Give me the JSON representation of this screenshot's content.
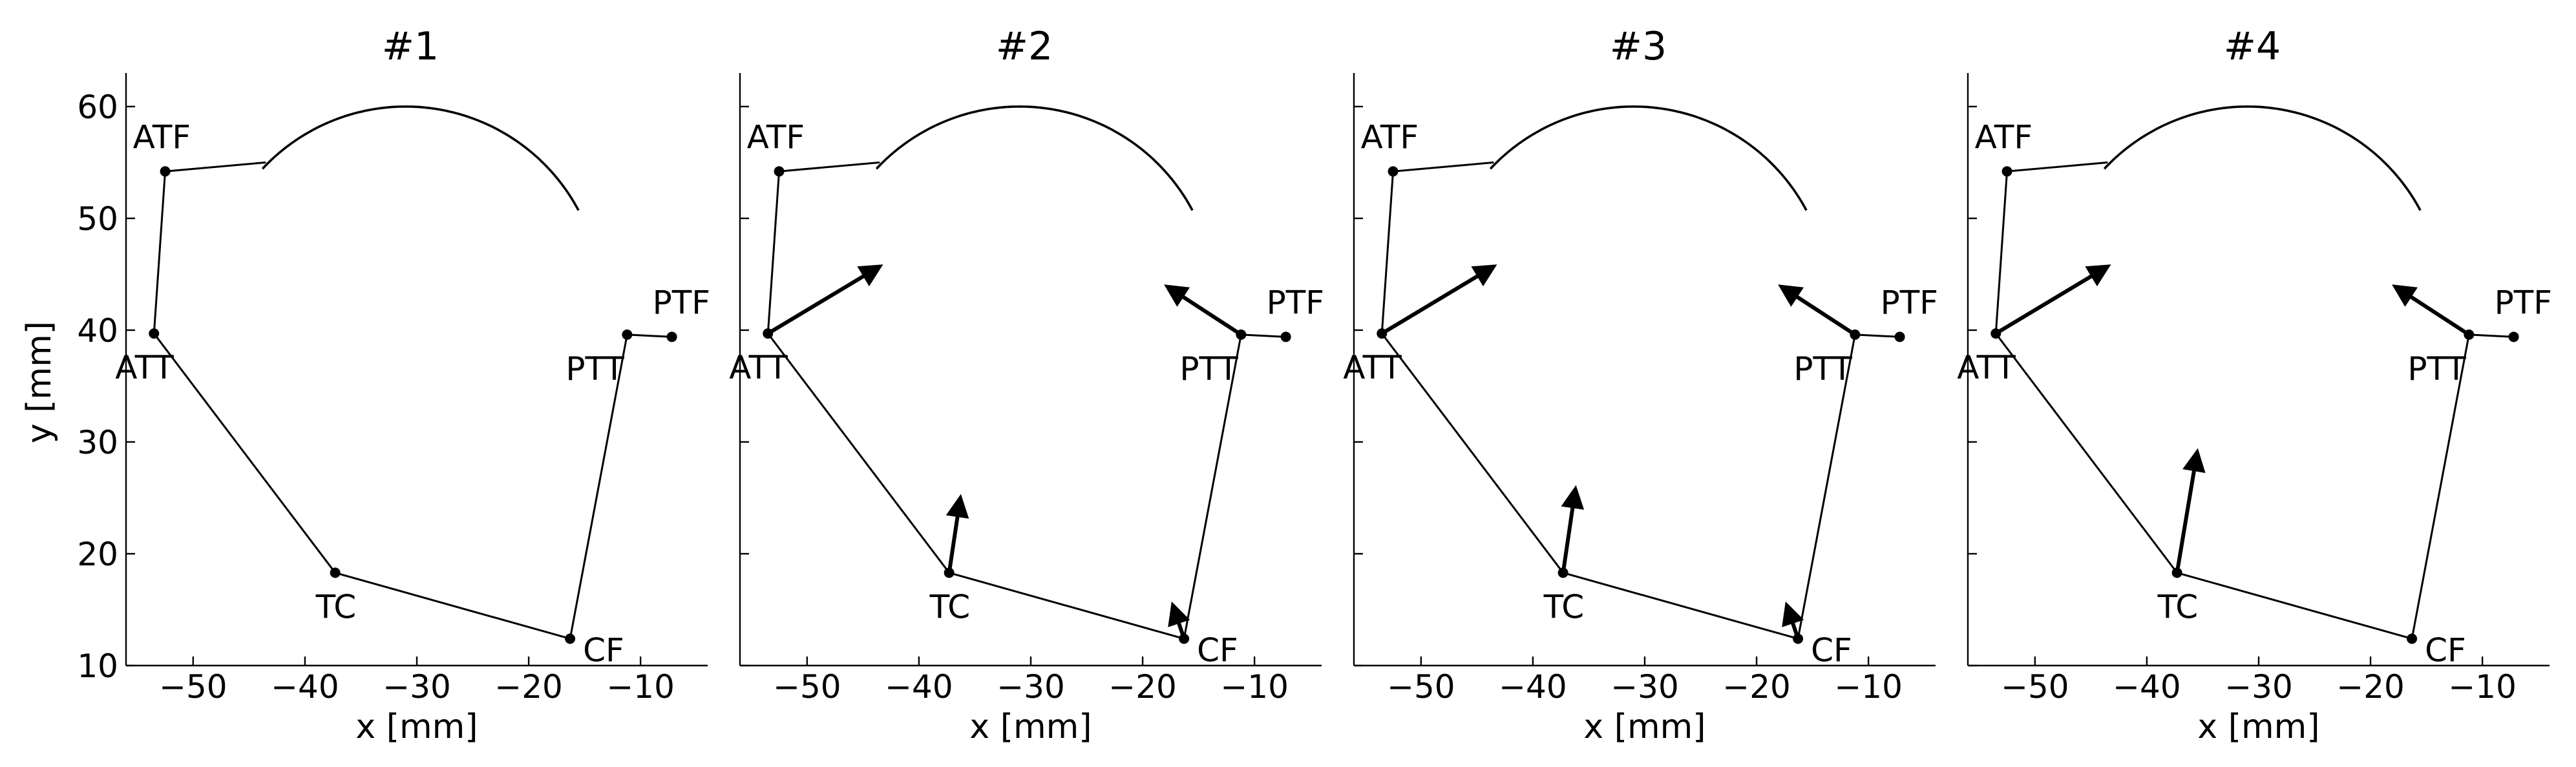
{
  "chart_data": {
    "type": "scatter",
    "xlabel": "x [mm]",
    "ylabel": "y [mm]",
    "xlim": [
      -56,
      -4
    ],
    "ylim": [
      10,
      63
    ],
    "xticks": [
      -50,
      -40,
      -30,
      -20,
      -10
    ],
    "yticks": [
      10,
      20,
      30,
      40,
      50,
      60
    ],
    "joint_labels": [
      "ATF",
      "ATT",
      "TC",
      "CF",
      "PTT",
      "PTF"
    ],
    "joints": {
      "ATF": [
        -52.5,
        54.2
      ],
      "ATT": [
        -53.5,
        39.7
      ],
      "TC": [
        -37.3,
        18.3
      ],
      "CF": [
        -16.3,
        12.4
      ],
      "PTT": [
        -11.2,
        39.6
      ],
      "PTF": [
        -7.2,
        39.4
      ]
    },
    "outline": [
      [
        -52.5,
        54.2
      ],
      [
        -43.5,
        55.0
      ]
    ],
    "arc": {
      "center": [
        -31.0,
        42.5
      ],
      "radius": 17.5,
      "from_deg": 137,
      "to_deg": 28
    },
    "panels": [
      {
        "title": "#1",
        "forces": []
      },
      {
        "title": "#2",
        "forces": [
          {
            "joint": "ATT",
            "to": [
              -43.5,
              45.7
            ]
          },
          {
            "joint": "TC",
            "to": [
              -36.3,
              25.0
            ]
          },
          {
            "joint": "CF",
            "to": [
              -17.3,
              15.4
            ]
          },
          {
            "joint": "PTT",
            "to": [
              -17.8,
              43.9
            ]
          }
        ]
      },
      {
        "title": "#3",
        "forces": [
          {
            "joint": "ATT",
            "to": [
              -43.5,
              45.7
            ]
          },
          {
            "joint": "TC",
            "to": [
              -36.2,
              25.8
            ]
          },
          {
            "joint": "CF",
            "to": [
              -17.3,
              15.4
            ]
          },
          {
            "joint": "PTT",
            "to": [
              -17.8,
              43.9
            ]
          }
        ]
      },
      {
        "title": "#4",
        "forces": [
          {
            "joint": "ATT",
            "to": [
              -43.5,
              45.7
            ]
          },
          {
            "joint": "TC",
            "to": [
              -35.5,
              29.1
            ]
          },
          {
            "joint": "CF",
            "to": null
          },
          {
            "joint": "PTT",
            "to": [
              -17.8,
              43.9
            ]
          }
        ]
      }
    ]
  }
}
